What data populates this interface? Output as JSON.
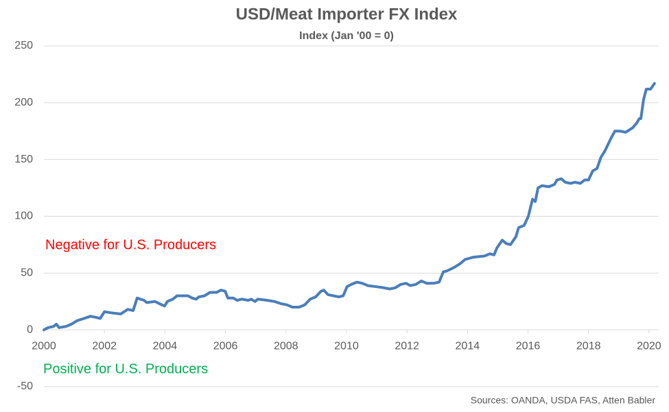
{
  "chart_data": {
    "type": "line",
    "title": "USD/Meat Importer FX Index",
    "subtitle": "Index (Jan '00 = 0)",
    "source": "Sources: OANDA, USDA FAS, Atten Babler",
    "annotations": [
      {
        "text": "Negative for U.S. Producers",
        "color": "#ff0000"
      },
      {
        "text": "Positive for U.S. Producers",
        "color": "#00b050"
      }
    ],
    "x": [
      2000.0,
      2000.14,
      2000.32,
      2000.41,
      2000.5,
      2000.73,
      2000.91,
      2001.09,
      2001.32,
      2001.54,
      2001.72,
      2001.86,
      2002.0,
      2002.22,
      2002.54,
      2002.77,
      2002.95,
      2003.08,
      2003.31,
      2003.4,
      2003.67,
      2003.9,
      2003.99,
      2004.08,
      2004.26,
      2004.4,
      2004.58,
      2004.76,
      2004.9,
      2005.03,
      2005.12,
      2005.31,
      2005.49,
      2005.71,
      2005.85,
      2005.99,
      2006.08,
      2006.26,
      2006.39,
      2006.53,
      2006.76,
      2006.85,
      2006.98,
      2007.07,
      2007.39,
      2007.62,
      2007.85,
      2008.03,
      2008.21,
      2008.44,
      2008.62,
      2008.8,
      2008.98,
      2009.16,
      2009.25,
      2009.39,
      2009.57,
      2009.75,
      2009.89,
      2010.02,
      2010.16,
      2010.34,
      2010.52,
      2010.7,
      2010.98,
      2011.25,
      2011.43,
      2011.61,
      2011.79,
      2011.97,
      2012.11,
      2012.29,
      2012.47,
      2012.65,
      2012.88,
      2013.06,
      2013.2,
      2013.33,
      2013.56,
      2013.74,
      2013.92,
      2014.2,
      2014.56,
      2014.74,
      2014.88,
      2014.97,
      2015.15,
      2015.28,
      2015.42,
      2015.6,
      2015.69,
      2015.87,
      2016.01,
      2016.15,
      2016.24,
      2016.33,
      2016.46,
      2016.69,
      2016.87,
      2016.96,
      2017.1,
      2017.23,
      2017.41,
      2017.55,
      2017.73,
      2017.87,
      2018.0,
      2018.14,
      2018.28,
      2018.41,
      2018.55,
      2018.73,
      2018.87,
      2019.05,
      2019.23,
      2019.46,
      2019.59,
      2019.68,
      2019.73,
      2019.82,
      2019.91,
      2020.05,
      2020.18
    ],
    "series": [
      {
        "name": "USD/Meat Importer FX Index",
        "color": "#4a7ebb",
        "values": [
          0,
          2,
          3,
          5,
          2,
          3,
          5,
          8,
          10,
          12,
          11,
          10,
          16,
          15,
          14,
          18,
          17,
          28,
          26,
          24,
          25,
          22,
          21,
          25,
          27,
          30,
          30,
          30,
          28,
          27,
          29,
          30,
          33,
          33,
          35,
          34,
          28,
          28,
          26,
          27,
          26,
          27,
          25,
          27,
          26,
          25,
          23,
          22,
          20,
          20,
          22,
          27,
          29,
          34,
          35,
          31,
          30,
          29,
          30,
          38,
          40,
          42,
          41,
          39,
          38,
          37,
          36,
          37,
          40,
          41,
          39,
          40,
          43,
          41,
          41,
          42,
          51,
          52,
          55,
          58,
          62,
          64,
          65,
          67,
          66,
          72,
          79,
          76,
          75,
          82,
          90,
          92,
          100,
          115,
          113,
          125,
          127,
          126,
          128,
          132,
          133,
          130,
          129,
          130,
          129,
          132,
          132,
          140,
          142,
          152,
          158,
          168,
          175,
          175,
          174,
          178,
          182,
          186,
          186,
          203,
          212,
          212,
          217
        ]
      }
    ],
    "xlim": [
      2000,
      2020.32
    ],
    "xticks": [
      2000,
      2002,
      2004,
      2006,
      2008,
      2010,
      2012,
      2014,
      2016,
      2018,
      2020
    ],
    "ylim": [
      -50,
      250
    ],
    "yticks": [
      -50,
      0,
      50,
      100,
      150,
      200,
      250
    ],
    "grid": true
  }
}
